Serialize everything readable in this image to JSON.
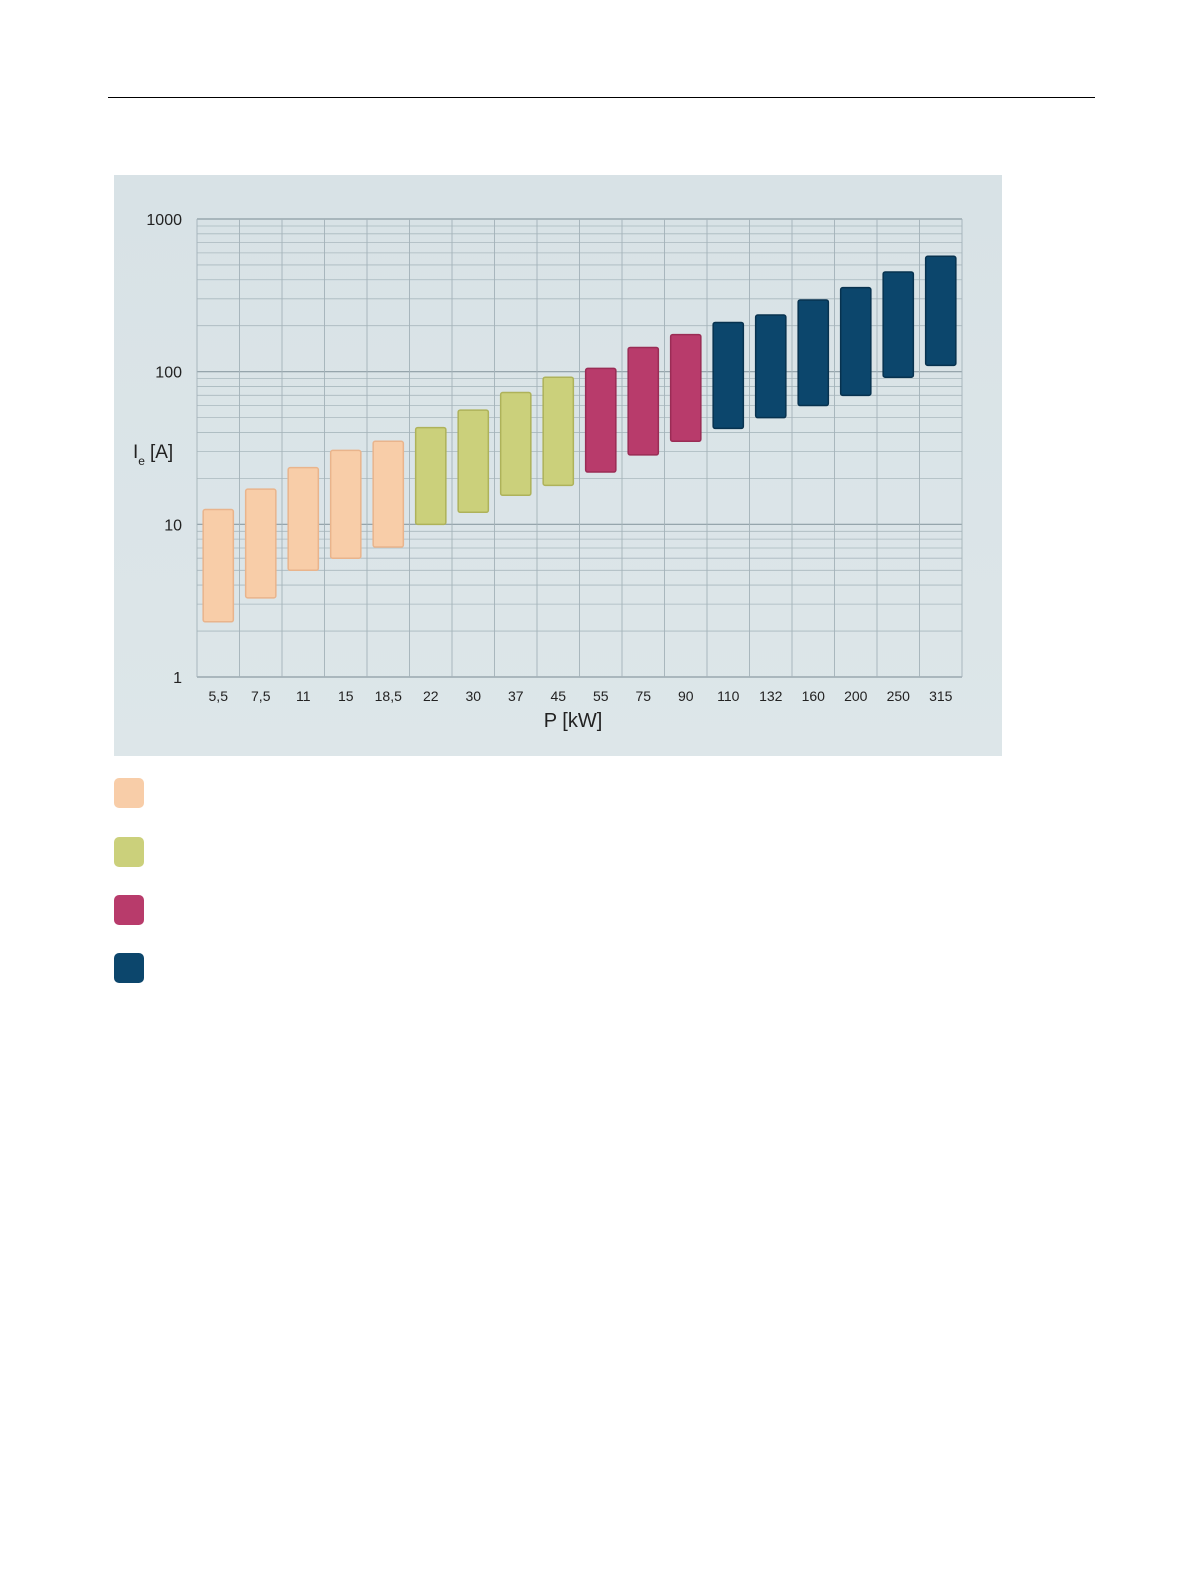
{
  "chart_data": {
    "type": "bar",
    "subtype": "floating-range",
    "scale": "log",
    "xlabel": "P [kW]",
    "ylabel_main": "I",
    "ylabel_sub": "e",
    "ylabel_unit": "[A]",
    "ylim": [
      1,
      1000
    ],
    "y_ticks": [
      "1",
      "10",
      "100",
      "1000"
    ],
    "grid": true,
    "categories": [
      "5,5",
      "7,5",
      "11",
      "15",
      "18,5",
      "22",
      "30",
      "37",
      "45",
      "55",
      "75",
      "90",
      "110",
      "132",
      "160",
      "200",
      "250",
      "315"
    ],
    "ranges": [
      [
        2.3,
        12.5
      ],
      [
        3.3,
        17
      ],
      [
        5,
        23.5
      ],
      [
        6,
        30.5
      ],
      [
        7.1,
        35
      ],
      [
        10,
        43
      ],
      [
        12,
        56
      ],
      [
        15.5,
        73
      ],
      [
        18,
        92
      ],
      [
        22,
        105
      ],
      [
        28.5,
        144
      ],
      [
        35,
        175
      ],
      [
        42.5,
        210
      ],
      [
        50,
        235
      ],
      [
        60,
        295
      ],
      [
        70,
        355
      ],
      [
        92,
        450
      ],
      [
        110,
        570
      ]
    ],
    "group_index": [
      0,
      0,
      0,
      0,
      0,
      1,
      1,
      1,
      1,
      2,
      2,
      2,
      3,
      3,
      3,
      3,
      3,
      3
    ],
    "group_colors": [
      "#f8cda8",
      "#cbd07b",
      "#b83b6b",
      "#0c466c"
    ],
    "legend_placement": "below"
  }
}
